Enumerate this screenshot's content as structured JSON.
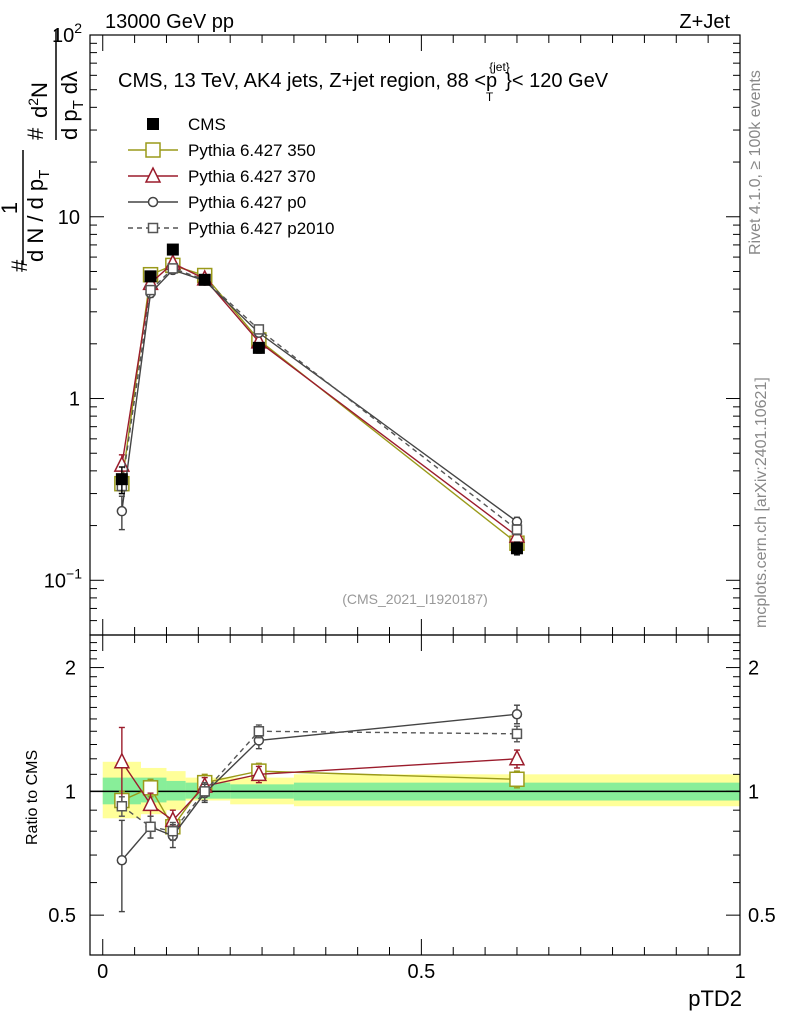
{
  "header": {
    "left": "13000 GeV pp",
    "right": "Z+Jet"
  },
  "title_parts": {
    "main": "CMS, 13 TeV, AK4 jets, Z+jet region, 88 <p",
    "sup": "{jet}",
    "sub": "T",
    "tail": "}< 120 GeV"
  },
  "side_labels": {
    "rivet": "Rivet 4.1.0, ≥ 100k events",
    "mcplots": "mcplots.cern.ch [arXiv:2401.10621]"
  },
  "analysis_tag": "(CMS_2021_I1920187)",
  "upper_ylabel": {
    "hash1": "#",
    "num1": "1",
    "den1": "d N / d p",
    "den1_sub": "T",
    "hash2": "#",
    "num2": "d",
    "num2_sup": "2",
    "num2_tail": "N",
    "den2": "d p",
    "den2_sub": "T",
    "den2_tail": "dλ"
  },
  "upper_ticks": [
    {
      "base": "10",
      "exp": "−1",
      "value": 0.1
    },
    {
      "base": "1",
      "exp": "",
      "value": 1
    },
    {
      "base": "10",
      "exp": "",
      "value": 10
    },
    {
      "base": "10",
      "exp": "2",
      "value": 100
    }
  ],
  "ratio_ticks": [
    "0.5",
    "1",
    "2"
  ],
  "x_ticks": [
    "0",
    "0.5",
    "1"
  ],
  "colors": {
    "cms": "#000000",
    "p350": "#9a9a1a",
    "p370": "#9b1c2c",
    "p0": "#444444",
    "p2010": "#555555",
    "band_yellow": "#ffff99",
    "band_green": "#88ee99"
  },
  "chart_data": {
    "type": "line",
    "xlabel": "pTD2",
    "ylabel": "1/dN/dpT  d2N/dpT dλ",
    "ratio_ylabel": "Ratio to CMS",
    "xlim": [
      0,
      1
    ],
    "ylim": [
      0.05,
      100
    ],
    "ratio_ylim": [
      0.4,
      2.4
    ],
    "bin_edges": [
      0,
      0.06,
      0.1,
      0.13,
      0.2,
      0.3,
      1.0
    ],
    "x": [
      0.03,
      0.075,
      0.11,
      0.16,
      0.245,
      0.65
    ],
    "series": [
      {
        "name": "CMS",
        "key": "cms",
        "values": [
          0.36,
          4.7,
          6.6,
          4.5,
          1.9,
          0.15
        ],
        "errors": [
          0.06,
          0.3,
          0.35,
          0.25,
          0.12,
          0.012
        ]
      },
      {
        "name": "Pythia 6.427 350",
        "key": "p350",
        "marker": "square",
        "dashed": false,
        "values": [
          0.34,
          4.8,
          5.4,
          4.75,
          2.1,
          0.16
        ],
        "errors": [
          0.03,
          0.2,
          0.2,
          0.2,
          0.08,
          0.01
        ],
        "ratio": [
          0.95,
          1.02,
          0.82,
          1.05,
          1.12,
          1.07
        ],
        "ratio_err": [
          0.05,
          0.05,
          0.04,
          0.05,
          0.05,
          0.05
        ]
      },
      {
        "name": "Pythia 6.427 370",
        "key": "p370",
        "marker": "triangle",
        "dashed": false,
        "values": [
          0.43,
          4.3,
          5.55,
          4.55,
          2.05,
          0.175
        ],
        "errors": [
          0.06,
          0.2,
          0.2,
          0.2,
          0.08,
          0.012
        ],
        "ratio": [
          1.18,
          0.93,
          0.85,
          1.03,
          1.1,
          1.2
        ],
        "ratio_err": [
          0.25,
          0.06,
          0.05,
          0.05,
          0.05,
          0.06
        ]
      },
      {
        "name": "Pythia 6.427 p0",
        "key": "p0",
        "marker": "circle",
        "dashed": false,
        "values": [
          0.24,
          3.8,
          5.1,
          4.45,
          2.3,
          0.21
        ],
        "errors": [
          0.05,
          0.2,
          0.2,
          0.2,
          0.08,
          0.012
        ],
        "ratio": [
          0.68,
          0.82,
          0.78,
          0.99,
          1.33,
          1.54
        ],
        "ratio_err": [
          0.17,
          0.05,
          0.05,
          0.05,
          0.06,
          0.08
        ]
      },
      {
        "name": "Pythia 6.427 p2010",
        "key": "p2010",
        "marker": "square-small",
        "dashed": true,
        "values": [
          0.33,
          3.95,
          5.2,
          4.5,
          2.4,
          0.19
        ],
        "errors": [
          0.03,
          0.2,
          0.2,
          0.2,
          0.08,
          0.012
        ],
        "ratio": [
          0.92,
          0.82,
          0.8,
          1.0,
          1.4,
          1.38
        ],
        "ratio_err": [
          0.05,
          0.05,
          0.04,
          0.05,
          0.05,
          0.06
        ]
      }
    ],
    "ratio_band_yellow": [
      [
        0.86,
        1.18
      ],
      [
        0.88,
        1.14
      ],
      [
        0.9,
        1.12
      ],
      [
        0.95,
        1.08
      ],
      [
        0.93,
        1.08
      ],
      [
        0.92,
        1.1
      ]
    ],
    "ratio_band_green": [
      [
        0.93,
        1.08
      ],
      [
        0.94,
        1.08
      ],
      [
        0.95,
        1.06
      ],
      [
        0.96,
        1.05
      ],
      [
        0.96,
        1.04
      ],
      [
        0.95,
        1.05
      ]
    ],
    "legend": [
      "CMS",
      "Pythia 6.427 350",
      "Pythia 6.427 370",
      "Pythia 6.427 p0",
      "Pythia 6.427 p2010"
    ]
  }
}
